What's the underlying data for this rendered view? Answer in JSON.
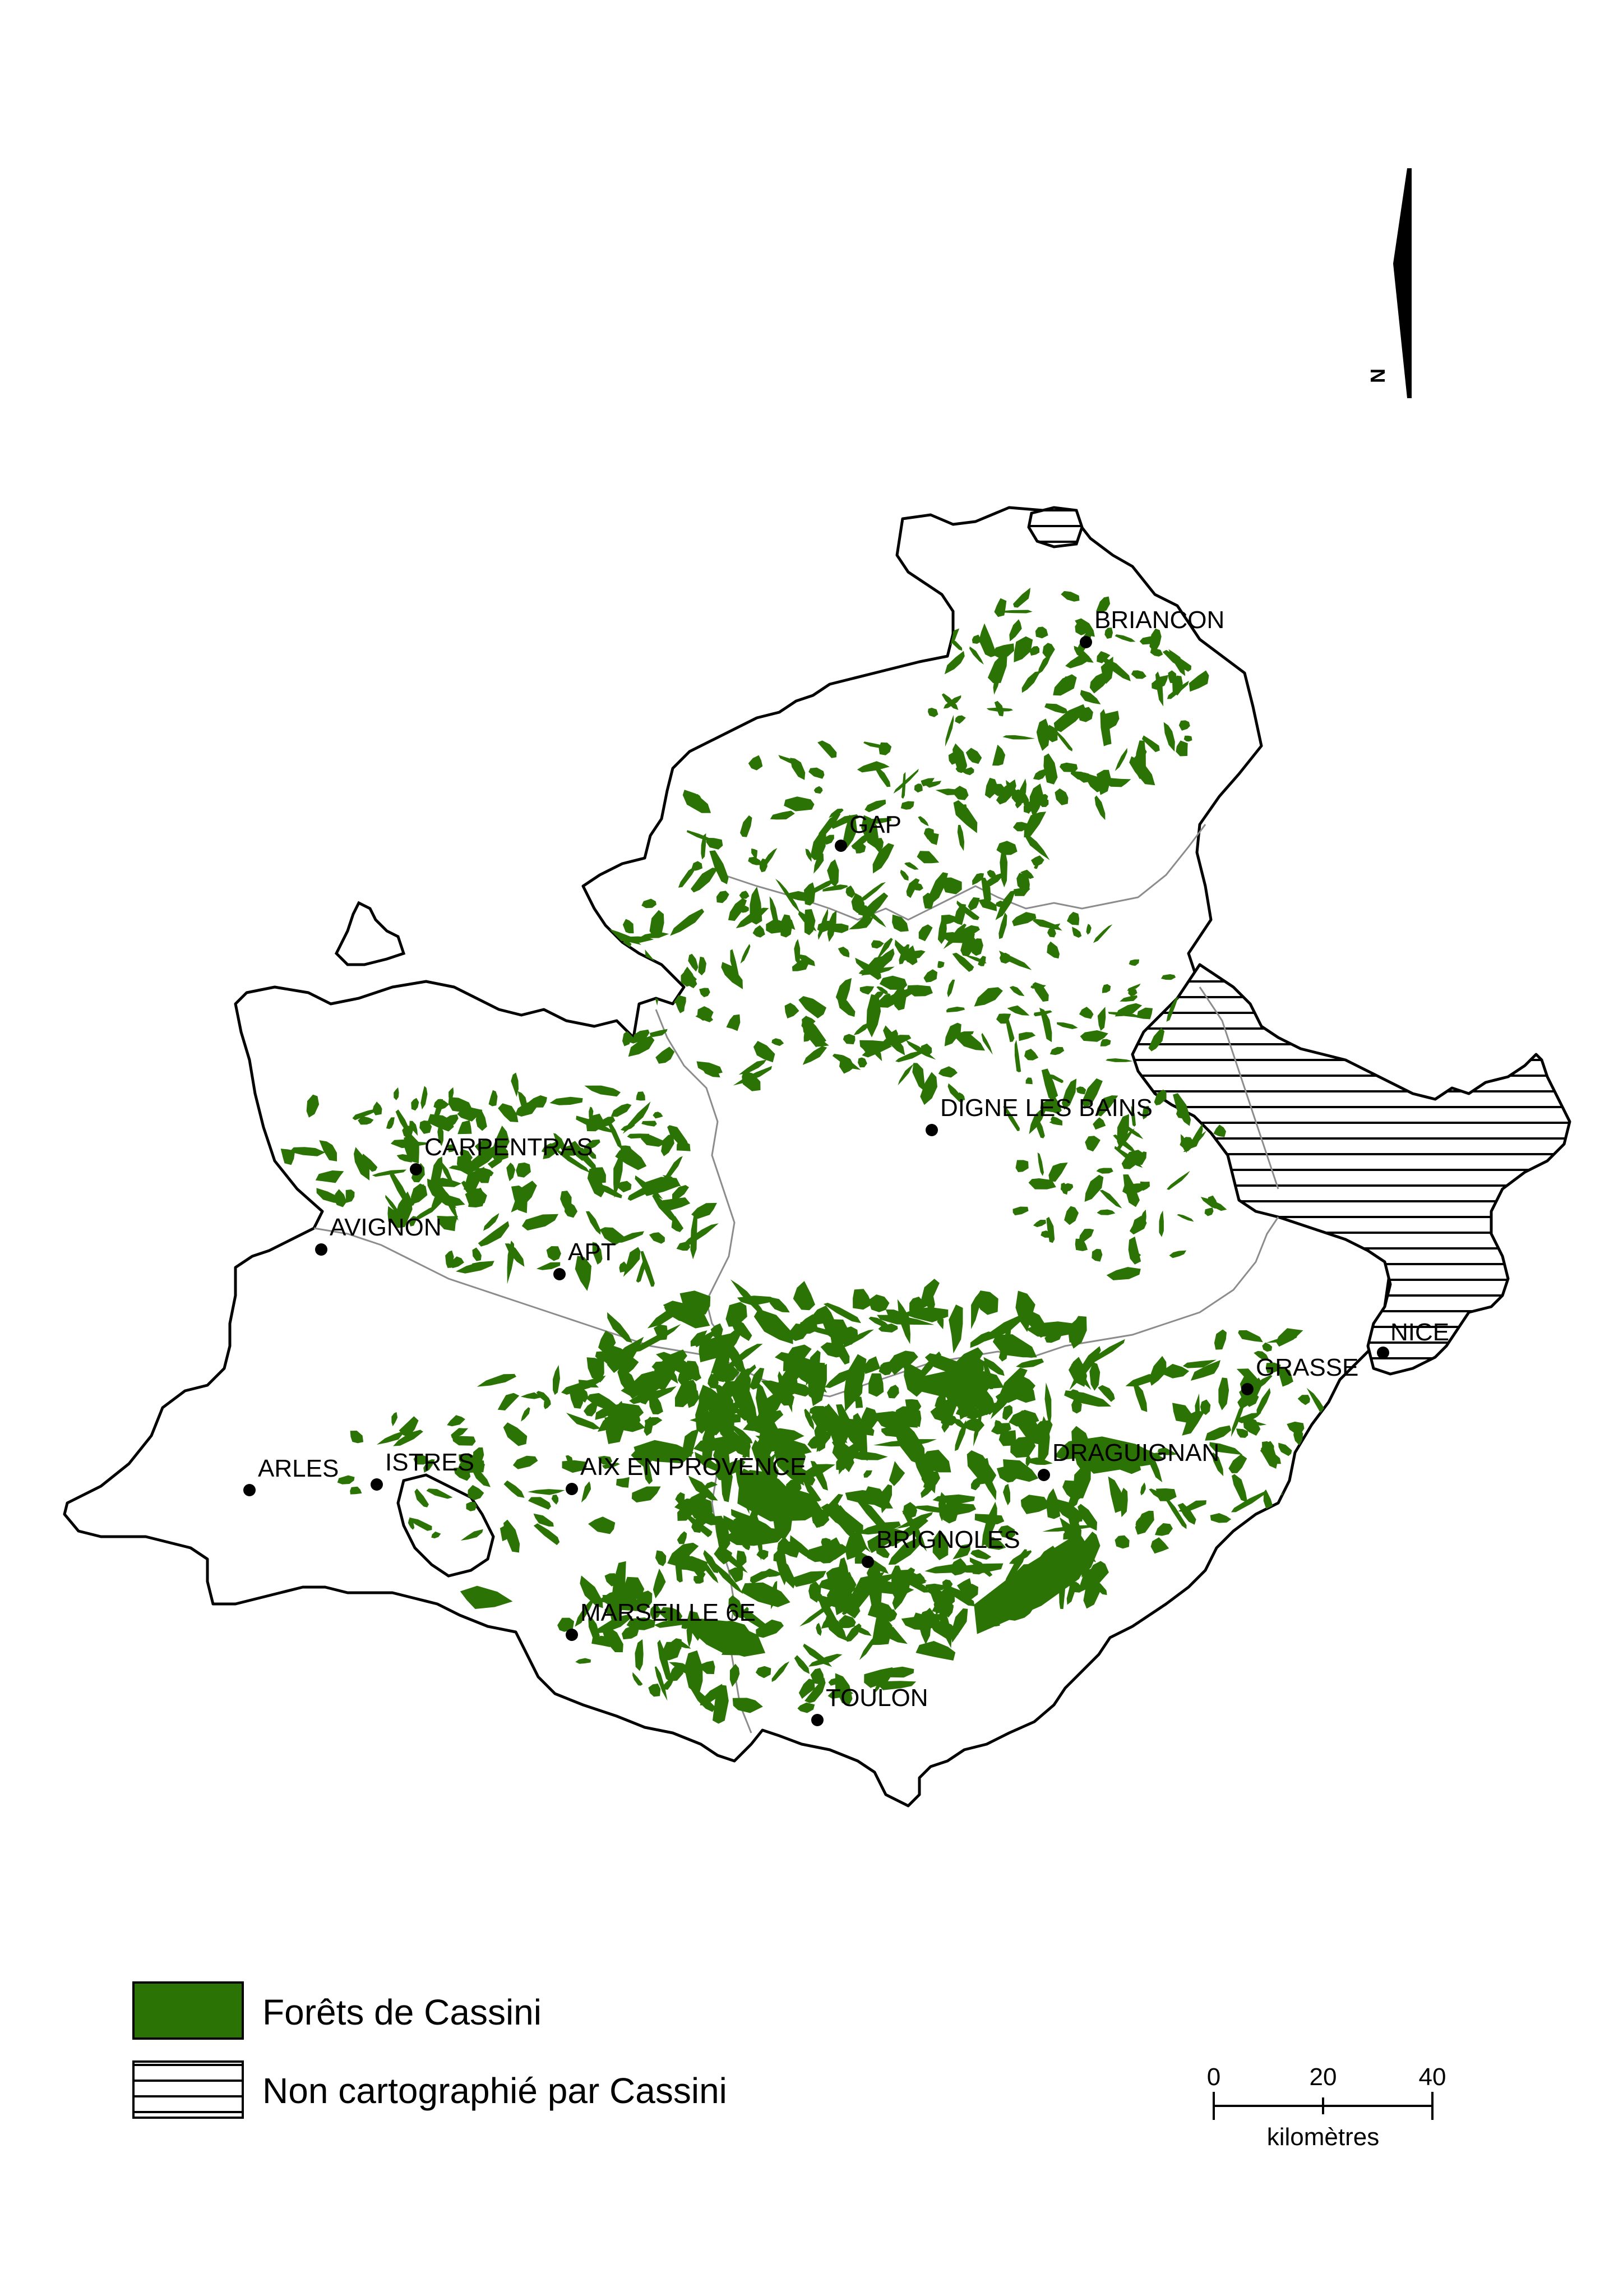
{
  "colors": {
    "forest": "#2b7305",
    "outline": "#000000",
    "dept_border": "#8c8c8c",
    "background": "#ffffff"
  },
  "north_arrow": {
    "label": "N"
  },
  "cities": [
    {
      "id": "briancon",
      "name": "BRIANCON"
    },
    {
      "id": "gap",
      "name": "GAP"
    },
    {
      "id": "digne",
      "name": "DIGNE LES BAINS"
    },
    {
      "id": "carpentras",
      "name": "CARPENTRAS"
    },
    {
      "id": "avignon",
      "name": "AVIGNON"
    },
    {
      "id": "apt",
      "name": "APT"
    },
    {
      "id": "nice",
      "name": "NICE"
    },
    {
      "id": "grasse",
      "name": "GRASSE"
    },
    {
      "id": "arles",
      "name": "ARLES"
    },
    {
      "id": "istres",
      "name": "ISTRES"
    },
    {
      "id": "aix",
      "name": "AIX EN PROVENCE"
    },
    {
      "id": "draguignan",
      "name": "DRAGUIGNAN"
    },
    {
      "id": "brignoles",
      "name": "BRIGNOLES"
    },
    {
      "id": "marseille",
      "name": "MARSEILLE 6E"
    },
    {
      "id": "toulon",
      "name": "TOULON"
    }
  ],
  "legend": {
    "forest_label": "Forêts de Cassini",
    "unmapped_label": "Non cartographié par Cassini"
  },
  "scale_bar": {
    "ticks": [
      "0",
      "20",
      "40"
    ],
    "unit": "kilomètres"
  }
}
